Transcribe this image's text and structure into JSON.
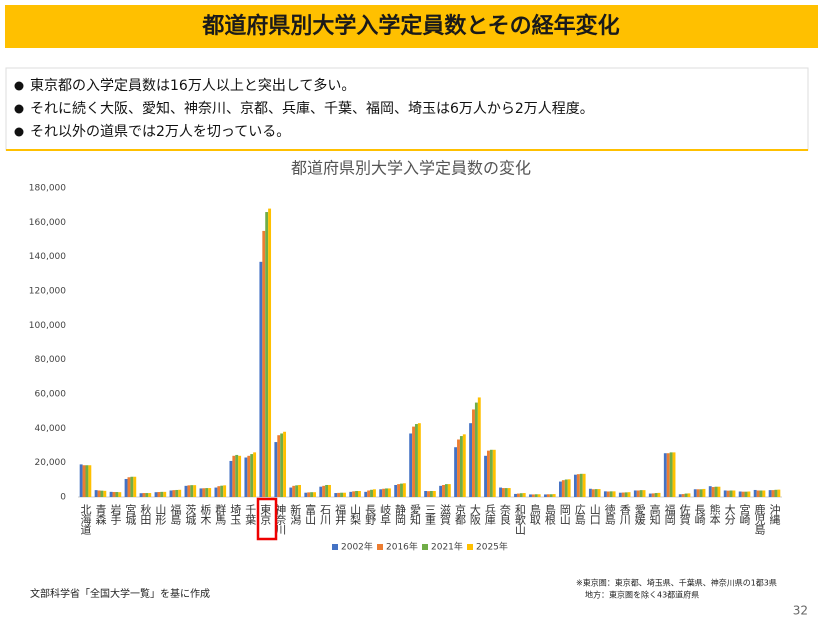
{
  "header": {
    "title": "都道府県別大学入学定員数とその経年変化"
  },
  "bullets": [
    "東京都の入学定員数は16万人以上と突出して多い。",
    "それに続く大阪、愛知、神奈川、京都、兵庫、千葉、福岡、埼玉は6万人から2万人程度。",
    "それ以外の道県では2万人を切っている。"
  ],
  "chart_data": {
    "type": "bar",
    "title": "都道府県別大学入学定員数の変化",
    "categories": [
      "北海道",
      "青森",
      "岩手",
      "宮城",
      "秋田",
      "山形",
      "福島",
      "茨城",
      "栃木",
      "群馬",
      "埼玉",
      "千葉",
      "東京",
      "神奈川",
      "新潟",
      "富山",
      "石川",
      "福井",
      "山梨",
      "長野",
      "岐阜",
      "静岡",
      "愛知",
      "三重",
      "滋賀",
      "京都",
      "大阪",
      "兵庫",
      "奈良",
      "和歌山",
      "鳥取",
      "島根",
      "岡山",
      "広島",
      "山口",
      "徳島",
      "香川",
      "愛媛",
      "高知",
      "福岡",
      "佐賀",
      "長崎",
      "熊本",
      "大分",
      "宮崎",
      "鹿児島",
      "沖縄"
    ],
    "series": [
      {
        "name": "2002年",
        "color": "#4472c4",
        "values": [
          19000,
          4000,
          3000,
          10500,
          2200,
          2800,
          3800,
          6500,
          5000,
          5500,
          21000,
          23000,
          137000,
          32000,
          5500,
          2500,
          6000,
          2300,
          3000,
          3000,
          4500,
          7000,
          37000,
          3500,
          6500,
          29000,
          43000,
          24000,
          5500,
          1800,
          1500,
          1500,
          9000,
          13000,
          4800,
          3300,
          2500,
          3800,
          2000,
          25500,
          1600,
          4500,
          6300,
          3800,
          3200,
          4100,
          4000
        ]
      },
      {
        "name": "2016年",
        "color": "#ed7d31",
        "values": [
          18500,
          3800,
          2900,
          11500,
          2300,
          2900,
          4000,
          6800,
          5100,
          6300,
          24000,
          24000,
          155000,
          36000,
          6500,
          2700,
          6500,
          2400,
          3300,
          3800,
          4800,
          7500,
          41000,
          3400,
          7000,
          33500,
          51000,
          27000,
          5200,
          2000,
          1500,
          1600,
          9800,
          13300,
          4500,
          3200,
          2600,
          3800,
          2100,
          25500,
          1700,
          4500,
          5800,
          3700,
          3100,
          3800,
          4000
        ]
      },
      {
        "name": "2021年",
        "color": "#70ad47",
        "values": [
          18500,
          3700,
          2900,
          11800,
          2300,
          3000,
          4100,
          6900,
          5200,
          6600,
          24500,
          25000,
          166000,
          37000,
          6800,
          2800,
          7000,
          2500,
          3500,
          4200,
          5000,
          7800,
          42500,
          3500,
          7500,
          35500,
          55000,
          27500,
          5200,
          2200,
          1600,
          1600,
          10200,
          13500,
          4600,
          3300,
          2700,
          4000,
          2300,
          26000,
          2000,
          4500,
          6000,
          3800,
          3100,
          3800,
          4200
        ]
      },
      {
        "name": "2025年",
        "color": "#ffc000",
        "values": [
          18500,
          3600,
          2800,
          11800,
          2300,
          3000,
          4200,
          6900,
          5200,
          6800,
          24000,
          26000,
          168000,
          38000,
          7000,
          2800,
          7000,
          2500,
          3500,
          4500,
          5000,
          8000,
          43000,
          3500,
          7500,
          36500,
          58000,
          27500,
          5200,
          2300,
          1600,
          1700,
          10300,
          13500,
          4600,
          3300,
          2800,
          4000,
          2400,
          26000,
          2100,
          4700,
          6000,
          3800,
          3200,
          3800,
          4300
        ]
      }
    ],
    "ylim": [
      0,
      180000
    ],
    "yticks": [
      0,
      {
        "value": 20000,
        "label": "20,000"
      },
      {
        "value": 40000,
        "label": "40,000"
      },
      {
        "value": 60000,
        "label": "60,000"
      },
      {
        "value": 80000,
        "label": "80,000"
      },
      {
        "value": 100000,
        "label": "100,000"
      },
      {
        "value": 120000,
        "label": "120,000"
      },
      {
        "value": 140000,
        "label": "140,000"
      },
      {
        "value": 160000,
        "label": "160,000"
      },
      {
        "value": 180000,
        "label": "180,000"
      }
    ],
    "grid": false,
    "legend": "bottom"
  },
  "footer": {
    "source": "文部科学省「全国大学一覧」を基に作成",
    "note1": "※東京圏：東京都、埼玉県、千葉県、神奈川県の1都3県",
    "note2": "地方：東京圏を除く43都道府県",
    "page": "32"
  }
}
